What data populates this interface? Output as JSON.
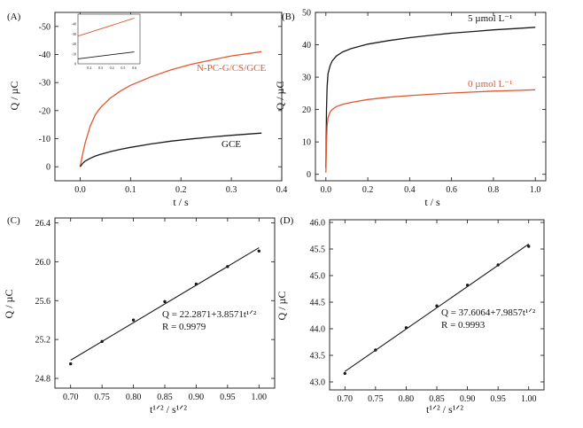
{
  "figure": {
    "panels": [
      "(A)",
      "(B)",
      "(C)",
      "(D)"
    ]
  },
  "colors": {
    "black_curve": "#1a1a1a",
    "red_curve": "#e2572f",
    "axis": "#111111"
  },
  "chart_data": [
    {
      "panel": "(A)",
      "type": "line",
      "xlabel": "t / s",
      "ylabel": "Q / µC",
      "xlim": [
        -0.05,
        0.4
      ],
      "ylim": [
        -55,
        5
      ],
      "y_inverted": true,
      "xticks": [
        "0.0",
        "0.1",
        "0.2",
        "0.3",
        "0.4"
      ],
      "yticks": [
        "0",
        "-10",
        "-20",
        "-30",
        "-40",
        "-50"
      ],
      "series": [
        {
          "name": "N-PC-G/CS/GCE",
          "color": "#e2572f",
          "x": [
            0,
            0.005,
            0.01,
            0.02,
            0.03,
            0.04,
            0.06,
            0.08,
            0.1,
            0.14,
            0.18,
            0.22,
            0.26,
            0.3,
            0.36
          ],
          "y": [
            0,
            -4.5,
            -8.5,
            -14.5,
            -18.5,
            -21,
            -24.5,
            -27,
            -29,
            -32,
            -34.5,
            -36.5,
            -38,
            -39.5,
            -41
          ]
        },
        {
          "name": "GCE",
          "color": "#1a1a1a",
          "x": [
            0,
            0.005,
            0.01,
            0.02,
            0.03,
            0.04,
            0.06,
            0.08,
            0.1,
            0.14,
            0.18,
            0.22,
            0.26,
            0.3,
            0.36
          ],
          "y": [
            0,
            -1.2,
            -2,
            -3,
            -3.8,
            -4.4,
            -5.4,
            -6.2,
            -6.9,
            -8.1,
            -9.1,
            -9.9,
            -10.6,
            -11.2,
            -12
          ]
        }
      ],
      "inset": {
        "type": "line",
        "xticks": [
          "0.2",
          "0.3",
          "0.4",
          "0.5",
          "0.6"
        ],
        "yticks": [
          "-40",
          "-30",
          "-20",
          "-10",
          "0"
        ],
        "series": [
          {
            "name": "N-PC-G/CS/GCE",
            "color": "#e2572f",
            "x": [
              0.1,
              0.6
            ],
            "y": [
              -28,
              -46
            ]
          },
          {
            "name": "GCE",
            "color": "#1a1a1a",
            "x": [
              0.1,
              0.6
            ],
            "y": [
              -5,
              -12
            ]
          }
        ]
      }
    },
    {
      "panel": "(B)",
      "type": "line",
      "xlabel": "t / s",
      "ylabel": "Q / µC",
      "xlim": [
        -0.05,
        1.05
      ],
      "ylim": [
        -2,
        50
      ],
      "xticks": [
        "0.0",
        "0.2",
        "0.4",
        "0.6",
        "0.8",
        "1.0"
      ],
      "yticks": [
        "0",
        "10",
        "20",
        "30",
        "40",
        "50"
      ],
      "series": [
        {
          "name": "5 µmol L⁻¹",
          "color": "#1a1a1a",
          "x": [
            0,
            0.003,
            0.006,
            0.01,
            0.02,
            0.03,
            0.05,
            0.08,
            0.12,
            0.2,
            0.3,
            0.4,
            0.5,
            0.6,
            0.7,
            0.8,
            0.9,
            1.0
          ],
          "y": [
            2,
            20,
            27,
            31,
            33.5,
            35,
            36.5,
            37.8,
            38.8,
            40.2,
            41.3,
            42.2,
            42.9,
            43.6,
            44.1,
            44.6,
            45.0,
            45.4
          ]
        },
        {
          "name": "0 µmol L⁻¹",
          "color": "#e2572f",
          "x": [
            0,
            0.003,
            0.006,
            0.01,
            0.02,
            0.03,
            0.05,
            0.08,
            0.12,
            0.2,
            0.3,
            0.4,
            0.5,
            0.6,
            0.7,
            0.8,
            0.9,
            1.0
          ],
          "y": [
            0.5,
            10,
            15,
            17.5,
            19.2,
            20.0,
            20.9,
            21.6,
            22.2,
            23.1,
            23.8,
            24.3,
            24.7,
            25.1,
            25.4,
            25.7,
            25.9,
            26.1
          ]
        }
      ]
    },
    {
      "panel": "(C)",
      "type": "scatter",
      "xlabel": "t¹ᐟ² / s¹ᐟ²",
      "ylabel": "Q / µC",
      "xlim": [
        0.675,
        1.025
      ],
      "ylim": [
        24.7,
        26.45
      ],
      "xticks": [
        "0.70",
        "0.75",
        "0.80",
        "0.85",
        "0.90",
        "0.95",
        "1.00"
      ],
      "yticks": [
        "24.8",
        "25.2",
        "25.6",
        "26.0",
        "26.4"
      ],
      "points": {
        "x": [
          0.7,
          0.75,
          0.8,
          0.85,
          0.9,
          0.95,
          1.0
        ],
        "y": [
          24.95,
          25.18,
          25.4,
          25.59,
          25.77,
          25.95,
          26.11
        ]
      },
      "fit": {
        "intercept": 22.2871,
        "slope": 3.8571,
        "x": [
          0.7,
          1.0
        ]
      },
      "annotation": {
        "equation": "Q = 22.2871+3.8571t¹ᐟ²",
        "r": "R = 0.9979"
      }
    },
    {
      "panel": "(D)",
      "type": "scatter",
      "xlabel": "t¹ᐟ² / s¹ᐟ²",
      "ylabel": "Q / µC",
      "xlim": [
        0.675,
        1.025
      ],
      "ylim": [
        42.85,
        46.05
      ],
      "xticks": [
        "0.70",
        "0.75",
        "0.80",
        "0.85",
        "0.90",
        "0.95",
        "1.00"
      ],
      "yticks": [
        "43.0",
        "43.5",
        "44.0",
        "44.5",
        "45.0",
        "45.5",
        "46.0"
      ],
      "points": {
        "x": [
          0.7,
          0.75,
          0.8,
          0.85,
          0.9,
          0.95,
          1.0
        ],
        "y": [
          43.16,
          43.6,
          44.02,
          44.43,
          44.82,
          45.2,
          45.55
        ]
      },
      "fit": {
        "intercept": 37.6064,
        "slope": 7.9857,
        "x": [
          0.7,
          1.0
        ]
      },
      "annotation": {
        "equation": "Q = 37.6064+7.9857t¹ᐟ²",
        "r": "R = 0.9993"
      }
    }
  ]
}
